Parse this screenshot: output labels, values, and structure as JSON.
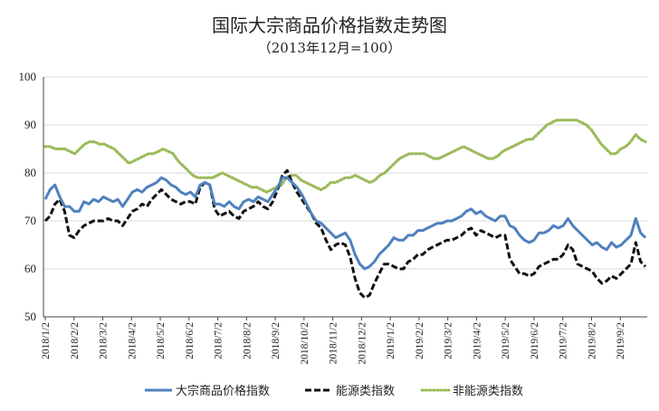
{
  "chart_data": {
    "type": "line",
    "title": "国际大宗商品价格指数走势图",
    "subtitle": "（2013年12月=100）",
    "xlabel": "",
    "ylabel": "",
    "ylim": [
      50,
      100
    ],
    "yticks": [
      50,
      60,
      70,
      80,
      90,
      100
    ],
    "grid": true,
    "legend_position": "bottom",
    "x_ticks": [
      "2018/1/2",
      "2018/2/2",
      "2018/3/2",
      "2018/4/2",
      "2018/5/2",
      "2018/6/2",
      "2018/7/2",
      "2018/8/2",
      "2018/9/2",
      "2018/10/2",
      "2018/11/2",
      "2018/12/2",
      "2019/1/2",
      "2019/2/2",
      "2019/3/2",
      "2019/4/2",
      "2019/5/2",
      "2019/6/2",
      "2019/7/2",
      "2019/8/2",
      "2019/9/2"
    ],
    "series": [
      {
        "name": "大宗商品价格指数",
        "color": "#4f81bd",
        "style": "solid",
        "values": [
          74.5,
          76.5,
          77.5,
          75,
          73,
          73,
          72,
          72,
          74,
          73.5,
          74.5,
          74,
          75,
          74.5,
          74,
          74.5,
          73,
          74.5,
          76,
          76.5,
          76,
          77,
          77.5,
          78,
          79,
          78.5,
          77.5,
          77,
          76,
          75.5,
          76,
          75,
          77.5,
          78,
          77.5,
          73.5,
          73.5,
          73,
          74,
          73,
          72.5,
          74,
          74.5,
          74,
          75,
          74.5,
          74,
          75.5,
          77,
          79,
          79,
          78,
          77,
          75.5,
          73.5,
          71.5,
          70,
          69.5,
          68.5,
          67.5,
          66.5,
          67,
          67.5,
          66,
          63,
          61,
          60,
          60.5,
          61.5,
          63,
          64,
          65,
          66.5,
          66,
          66,
          67,
          67,
          68,
          68,
          68.5,
          69,
          69.5,
          69.5,
          70,
          70,
          70.5,
          71,
          72,
          72.5,
          71.5,
          72,
          71,
          70.5,
          70,
          71,
          71,
          69,
          68.5,
          67,
          66,
          65.5,
          66,
          67.5,
          67.5,
          68,
          69,
          68.5,
          69,
          70.5,
          69,
          68,
          67,
          66,
          65,
          65.5,
          64.5,
          64,
          65.5,
          64.5,
          65,
          66,
          67,
          70.5,
          67.5,
          66.5
        ]
      },
      {
        "name": "能源类指数",
        "color": "#111111",
        "style": "dashed",
        "values": [
          70,
          71,
          73.5,
          74.5,
          72,
          67,
          66.5,
          68,
          69,
          69.5,
          70,
          70,
          70,
          70.5,
          70,
          70,
          69,
          70.5,
          72,
          72.5,
          73.5,
          73,
          74.5,
          75.5,
          76.5,
          75.5,
          74.5,
          74,
          73.5,
          74,
          74,
          73.5,
          77,
          78,
          77.5,
          72.5,
          71,
          71.5,
          72,
          71,
          70.5,
          72,
          72.5,
          73,
          74,
          73,
          72.5,
          74,
          76.5,
          79.5,
          80.5,
          78,
          76,
          74.5,
          73,
          71.5,
          69.5,
          68.5,
          66,
          64,
          65,
          65.5,
          65,
          62.5,
          58,
          55,
          54,
          54.5,
          57,
          59,
          61,
          61,
          60.5,
          60,
          60,
          61.5,
          62,
          63,
          63,
          64,
          64.5,
          65,
          65.5,
          66,
          66,
          66.5,
          67,
          68,
          68.5,
          67,
          68,
          67.5,
          67,
          66.5,
          67,
          67,
          62,
          60.5,
          59,
          59,
          58.5,
          59,
          60.5,
          61,
          61.5,
          62,
          62,
          63,
          65,
          64,
          61,
          60.5,
          60,
          59.5,
          58,
          57,
          57.5,
          58.5,
          58,
          59,
          60,
          61,
          65.5,
          61.5,
          60.5
        ]
      },
      {
        "name": "非能源类指数",
        "color": "#9bbb59",
        "style": "dotted",
        "values": [
          85.5,
          85.5,
          85,
          85,
          85,
          84.5,
          84,
          85,
          86,
          86.5,
          86.5,
          86,
          86,
          85.5,
          85,
          84,
          83,
          82,
          82.5,
          83,
          83.5,
          84,
          84,
          84.5,
          85,
          84.5,
          84,
          82.5,
          81.5,
          80.5,
          79.5,
          79,
          79,
          79,
          79,
          79.5,
          80,
          79.5,
          79,
          78.5,
          78,
          77.5,
          77,
          77,
          76.5,
          76,
          76.5,
          77,
          77.5,
          79,
          79.5,
          79.5,
          78.5,
          78,
          77.5,
          77,
          76.5,
          77,
          78,
          78,
          78.5,
          79,
          79,
          79.5,
          79,
          78.5,
          78,
          78.5,
          79.5,
          80,
          81,
          82,
          83,
          83.5,
          84,
          84,
          84,
          84,
          83.5,
          83,
          83,
          83.5,
          84,
          84.5,
          85,
          85.5,
          85,
          84.5,
          84,
          83.5,
          83,
          83,
          83.5,
          84.5,
          85,
          85.5,
          86,
          86.5,
          87,
          87,
          88,
          89,
          90,
          90.5,
          91,
          91,
          91,
          91,
          91,
          90.5,
          90,
          89,
          87.5,
          86,
          85,
          84,
          84,
          85,
          85.5,
          86.5,
          88,
          87,
          86.5
        ]
      }
    ]
  }
}
